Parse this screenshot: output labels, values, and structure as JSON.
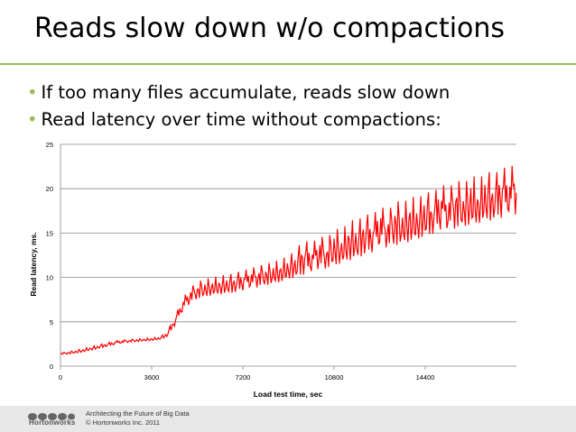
{
  "slide": {
    "title": "Reads slow down w/o compactions",
    "bullets": [
      "If too many files accumulate, reads slow down",
      "Read latency over time without compactions:"
    ],
    "accent_color": "#9bbb59"
  },
  "footer": {
    "logo_text": "Hortonworks",
    "line1": "Architecting the Future of Big Data",
    "line2": "© Hortonworks Inc. 2011"
  },
  "chart_data": {
    "type": "line",
    "title": "",
    "xlabel": "Load test time, sec",
    "ylabel": "Read latency, ms.",
    "xlim": [
      0,
      18000
    ],
    "ylim": [
      0,
      25
    ],
    "x_ticks": [
      0,
      3600,
      7200,
      10800,
      14400
    ],
    "x_tick_labels": [
      "0",
      "3600",
      "7200",
      "10800",
      "14400"
    ],
    "y_ticks": [
      0,
      5,
      10,
      15,
      20,
      25
    ],
    "y_tick_labels": [
      "0",
      "5",
      "10",
      "15",
      "20",
      "25"
    ],
    "grid": "horizontal",
    "line_color": "#ff0000",
    "series": [
      {
        "x": [
          0,
          450,
          900,
          1350,
          1800,
          2250,
          2700,
          3150,
          3600,
          3900,
          4200,
          4500,
          4800,
          5100,
          5400,
          5700,
          6000,
          6300,
          6600,
          6900,
          7200,
          7500,
          7800,
          8100,
          8400,
          8700,
          9000,
          9300,
          9600,
          9900,
          10200,
          10500,
          10800,
          11100,
          11400,
          11700,
          12000,
          12300,
          12600,
          12900,
          13200,
          13500,
          13800,
          14100,
          14400,
          14700,
          15000,
          15300,
          15600,
          15900,
          16200,
          16500,
          16800,
          17100,
          17400,
          17700,
          18000
        ],
        "low": [
          1.3,
          1.4,
          1.6,
          1.9,
          2.2,
          2.5,
          2.7,
          2.8,
          2.9,
          3.0,
          3.3,
          4.5,
          6.0,
          7.0,
          7.6,
          7.8,
          8.0,
          8.1,
          8.2,
          8.3,
          8.5,
          8.7,
          8.9,
          9.1,
          9.3,
          9.5,
          9.8,
          10.0,
          10.3,
          10.5,
          10.8,
          11.0,
          11.3,
          11.6,
          11.9,
          12.2,
          12.5,
          12.8,
          13.1,
          13.4,
          13.6,
          13.8,
          14.0,
          14.3,
          14.6,
          14.9,
          15.1,
          15.3,
          15.5,
          15.7,
          15.9,
          16.1,
          16.3,
          16.5,
          16.7,
          16.9,
          17.0
        ],
        "high": [
          1.5,
          1.7,
          2.0,
          2.3,
          2.6,
          2.9,
          3.0,
          3.1,
          3.2,
          3.3,
          3.8,
          5.5,
          7.5,
          8.8,
          9.5,
          9.8,
          10.0,
          10.2,
          10.3,
          10.5,
          10.8,
          11.0,
          11.3,
          11.5,
          11.8,
          12.0,
          12.5,
          13.0,
          14.5,
          13.5,
          15.0,
          14.0,
          15.8,
          15.0,
          16.8,
          16.0,
          17.5,
          16.5,
          18.5,
          17.0,
          19.0,
          18.0,
          19.5,
          18.5,
          20.0,
          19.0,
          21.0,
          19.5,
          21.5,
          20.0,
          22.0,
          20.5,
          22.5,
          21.0,
          23.0,
          21.5,
          24.0
        ]
      }
    ]
  }
}
